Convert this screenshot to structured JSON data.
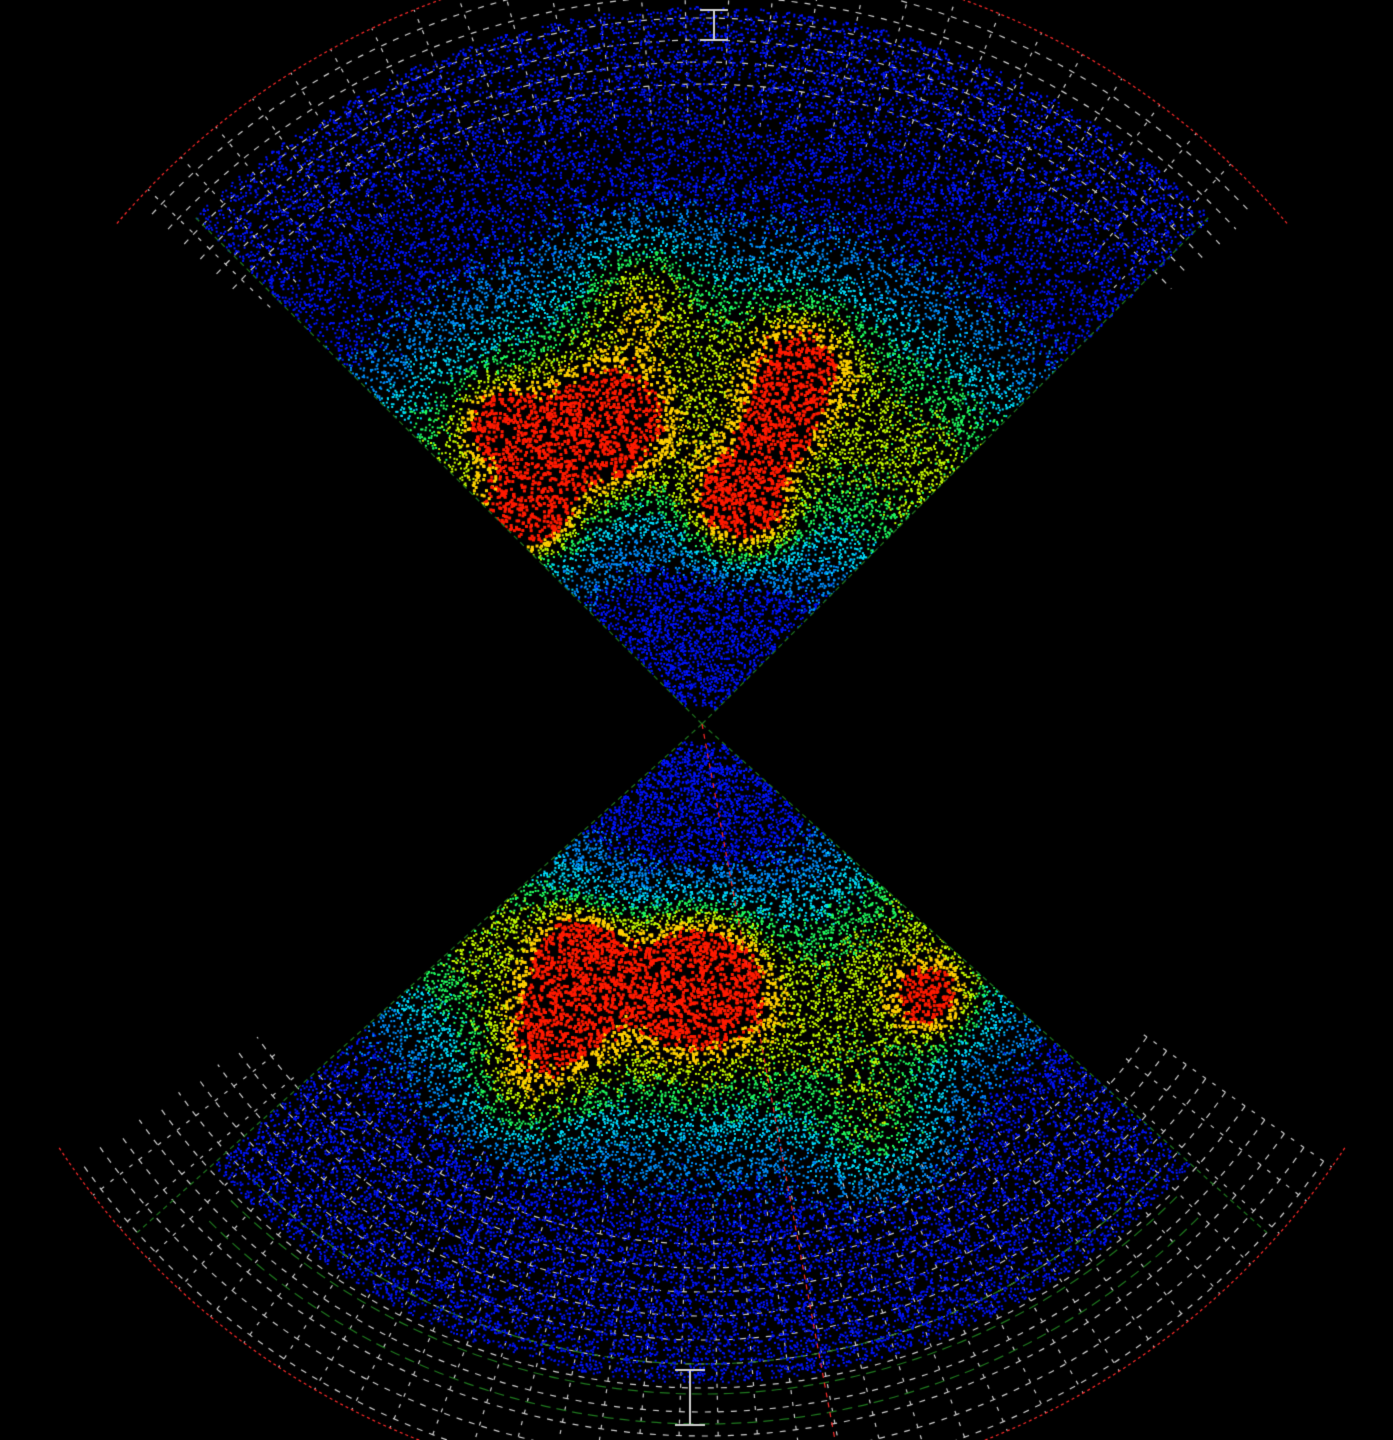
{
  "visualization": {
    "kind": "galaxy-redshift-survey-wedge-diagram",
    "text_labels": [],
    "background_color": "#000000",
    "grid_color": "#cfcfcf",
    "wedge_edge_color": "#1f7a1f",
    "outer_rim_color": "#ff2a2a",
    "density_colormap": [
      "#0014ff",
      "#0090ff",
      "#00e0ff",
      "#20ff60",
      "#c8ff00",
      "#ffd000",
      "#ff1a00"
    ],
    "wedges": [
      {
        "id": "north",
        "direction": "up",
        "apex_shared": true,
        "density_clusters": [
          {
            "label": "",
            "strength": 1.0
          },
          {
            "label": "",
            "strength": 0.95
          },
          {
            "label": "",
            "strength": 0.9
          },
          {
            "label": "",
            "strength": 0.85
          },
          {
            "label": "",
            "strength": 0.8
          }
        ]
      },
      {
        "id": "south",
        "direction": "down",
        "apex_shared": true,
        "density_clusters": [
          {
            "label": "",
            "strength": 1.0
          },
          {
            "label": "",
            "strength": 0.9
          },
          {
            "label": "",
            "strength": 0.85
          },
          {
            "label": "",
            "strength": 0.8
          }
        ]
      }
    ]
  }
}
